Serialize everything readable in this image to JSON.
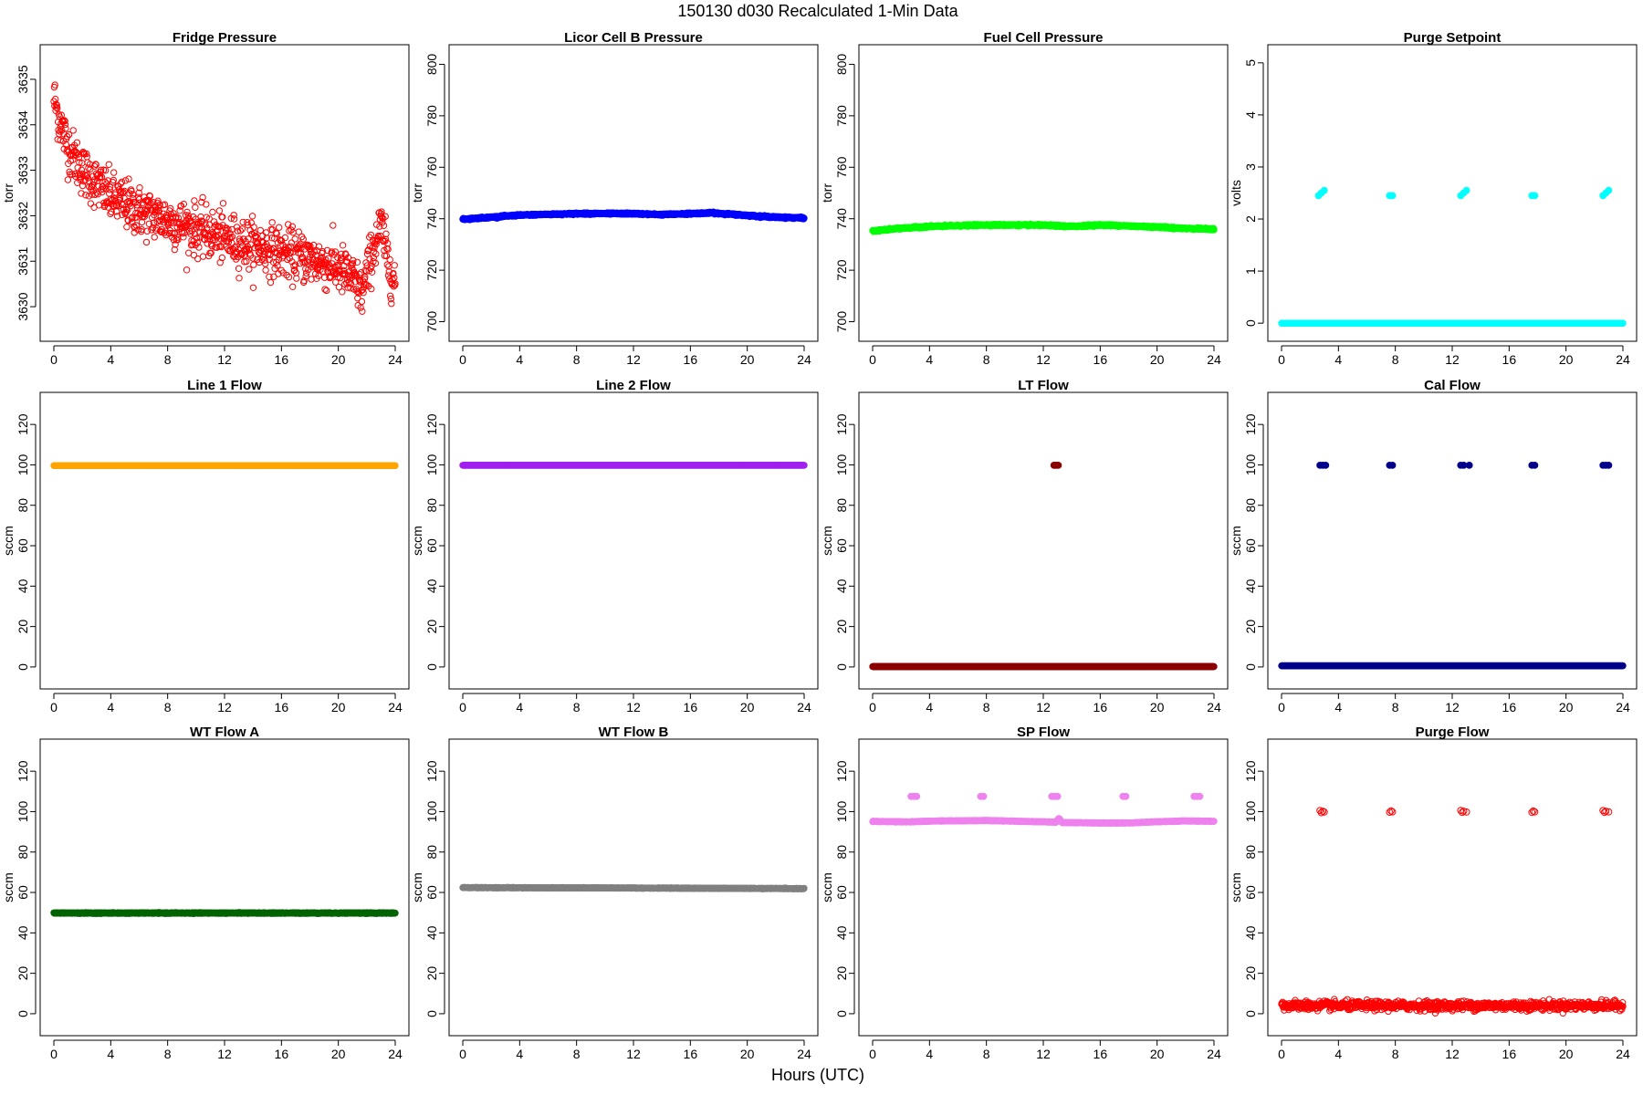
{
  "figure": {
    "title": "150130   d030   Recalculated 1-Min Data",
    "xlabel": "Hours (UTC)"
  },
  "chart_data": [
    {
      "type": "scatter",
      "title": "Fridge Pressure",
      "ylabel": "torr",
      "color": "#ff0000",
      "marker": "open",
      "xlim": [
        0,
        24
      ],
      "xticks": [
        0,
        4,
        8,
        12,
        16,
        20,
        24
      ],
      "ylim": [
        3629.5,
        3635.5
      ],
      "yticks": [
        3630,
        3631,
        3632,
        3633,
        3634,
        3635
      ],
      "series": [
        {
          "trend": [
            [
              0,
              3634.6
            ],
            [
              0.3,
              3634.2
            ],
            [
              1,
              3633.5
            ],
            [
              2,
              3633.0
            ],
            [
              3,
              3632.7
            ],
            [
              4,
              3632.4
            ],
            [
              6,
              3632.1
            ],
            [
              8,
              3631.9
            ],
            [
              10,
              3631.7
            ],
            [
              12,
              3631.5
            ],
            [
              14,
              3631.35
            ],
            [
              16,
              3631.2
            ],
            [
              18,
              3631.05
            ],
            [
              20,
              3630.85
            ],
            [
              21,
              3630.6
            ],
            [
              21.7,
              3630.3
            ],
            [
              22.3,
              3631.1
            ],
            [
              23,
              3631.8
            ],
            [
              23.5,
              3631.0
            ],
            [
              24,
              3630.5
            ]
          ],
          "spread": 0.55
        }
      ]
    },
    {
      "type": "scatter",
      "title": "Licor Cell B Pressure",
      "ylabel": "torr",
      "color": "#0000ff",
      "marker": "filled",
      "xlim": [
        0,
        24
      ],
      "xticks": [
        0,
        4,
        8,
        12,
        16,
        20,
        24
      ],
      "ylim": [
        697,
        803
      ],
      "yticks": [
        700,
        720,
        740,
        760,
        780,
        800
      ],
      "series": [
        {
          "trend": [
            [
              0,
              739.8
            ],
            [
              2,
              740.6
            ],
            [
              4,
              741.4
            ],
            [
              8,
              742.0
            ],
            [
              12,
              742.0
            ],
            [
              14,
              741.6
            ],
            [
              16,
              742.0
            ],
            [
              17.5,
              742.3
            ],
            [
              20,
              741.3
            ],
            [
              22,
              740.6
            ],
            [
              24,
              740.3
            ]
          ],
          "spread": 0.3
        }
      ]
    },
    {
      "type": "scatter",
      "title": "Fuel Cell Pressure",
      "ylabel": "torr",
      "color": "#00ff00",
      "marker": "filled",
      "xlim": [
        0,
        24
      ],
      "xticks": [
        0,
        4,
        8,
        12,
        16,
        20,
        24
      ],
      "ylim": [
        697,
        803
      ],
      "yticks": [
        700,
        720,
        740,
        760,
        780,
        800
      ],
      "series": [
        {
          "trend": [
            [
              0,
              735.2
            ],
            [
              2,
              736.3
            ],
            [
              4,
              737.0
            ],
            [
              8,
              737.6
            ],
            [
              12,
              737.5
            ],
            [
              14,
              737.0
            ],
            [
              16,
              737.6
            ],
            [
              20,
              736.8
            ],
            [
              22,
              736.2
            ],
            [
              24,
              736.0
            ]
          ],
          "spread": 0.3
        }
      ]
    },
    {
      "type": "scatter",
      "title": "Purge Setpoint",
      "ylabel": "volts",
      "color": "#00ffff",
      "marker": "filled",
      "xlim": [
        0,
        24
      ],
      "xticks": [
        0,
        4,
        8,
        12,
        16,
        20,
        24
      ],
      "ylim": [
        -0.12,
        5.12
      ],
      "yticks": [
        0,
        1,
        2,
        3,
        4,
        5
      ],
      "series": [
        {
          "trend": [
            [
              0,
              0
            ],
            [
              24,
              0
            ]
          ],
          "spread": 0.0
        },
        {
          "cluster": [
            [
              2.6,
              2.45
            ],
            [
              2.8,
              2.5
            ],
            [
              3.0,
              2.55
            ],
            [
              7.6,
              2.45
            ],
            [
              7.8,
              2.45
            ],
            [
              12.6,
              2.45
            ],
            [
              12.8,
              2.5
            ],
            [
              13.0,
              2.55
            ],
            [
              17.6,
              2.45
            ],
            [
              17.8,
              2.45
            ],
            [
              22.6,
              2.45
            ],
            [
              22.8,
              2.5
            ],
            [
              23.0,
              2.55
            ]
          ]
        }
      ]
    },
    {
      "type": "scatter",
      "title": "Line 1 Flow",
      "ylabel": "sccm",
      "color": "#ffa500",
      "marker": "filled",
      "xlim": [
        0,
        24
      ],
      "xticks": [
        0,
        4,
        8,
        12,
        16,
        20,
        24
      ],
      "ylim": [
        -5,
        130
      ],
      "yticks": [
        0,
        20,
        40,
        60,
        80,
        100,
        120
      ],
      "series": [
        {
          "trend": [
            [
              0,
              99.6
            ],
            [
              24,
              99.6
            ]
          ],
          "spread": 0.0
        }
      ]
    },
    {
      "type": "scatter",
      "title": "Line 2 Flow",
      "ylabel": "sccm",
      "color": "#a020f0",
      "marker": "filled",
      "xlim": [
        0,
        24
      ],
      "xticks": [
        0,
        4,
        8,
        12,
        16,
        20,
        24
      ],
      "ylim": [
        -5,
        130
      ],
      "yticks": [
        0,
        20,
        40,
        60,
        80,
        100,
        120
      ],
      "series": [
        {
          "trend": [
            [
              0,
              99.8
            ],
            [
              24,
              99.8
            ]
          ],
          "spread": 0.0
        }
      ]
    },
    {
      "type": "scatter",
      "title": "LT Flow",
      "ylabel": "sccm",
      "color": "#8b0000",
      "marker": "filled",
      "xlim": [
        0,
        24
      ],
      "xticks": [
        0,
        4,
        8,
        12,
        16,
        20,
        24
      ],
      "ylim": [
        -5,
        130
      ],
      "yticks": [
        0,
        20,
        40,
        60,
        80,
        100,
        120
      ],
      "series": [
        {
          "trend": [
            [
              0,
              0.2
            ],
            [
              24,
              0.2
            ]
          ],
          "spread": 0.0
        },
        {
          "cluster": [
            [
              12.75,
              99.8
            ],
            [
              12.85,
              99.8
            ],
            [
              12.95,
              99.8
            ],
            [
              13.05,
              99.8
            ]
          ]
        }
      ]
    },
    {
      "type": "scatter",
      "title": "Cal Flow",
      "ylabel": "sccm",
      "color": "#00008b",
      "marker": "filled",
      "xlim": [
        0,
        24
      ],
      "xticks": [
        0,
        4,
        8,
        12,
        16,
        20,
        24
      ],
      "ylim": [
        -5,
        130
      ],
      "yticks": [
        0,
        20,
        40,
        60,
        80,
        100,
        120
      ],
      "series": [
        {
          "trend": [
            [
              0,
              0.6
            ],
            [
              24,
              0.6
            ]
          ],
          "spread": 0.0
        },
        {
          "cluster": [
            [
              2.7,
              99.8
            ],
            [
              2.9,
              99.8
            ],
            [
              3.1,
              99.8
            ],
            [
              7.6,
              99.8
            ],
            [
              7.8,
              99.8
            ],
            [
              12.6,
              99.8
            ],
            [
              12.8,
              99.8
            ],
            [
              13.2,
              99.8
            ],
            [
              17.6,
              99.8
            ],
            [
              17.8,
              99.8
            ],
            [
              22.6,
              99.8
            ],
            [
              22.8,
              99.8
            ],
            [
              23.0,
              99.8
            ]
          ]
        }
      ]
    },
    {
      "type": "scatter",
      "title": "WT Flow A",
      "ylabel": "sccm",
      "color": "#006400",
      "marker": "filled",
      "xlim": [
        0,
        24
      ],
      "xticks": [
        0,
        4,
        8,
        12,
        16,
        20,
        24
      ],
      "ylim": [
        -5,
        130
      ],
      "yticks": [
        0,
        20,
        40,
        60,
        80,
        100,
        120
      ],
      "series": [
        {
          "trend": [
            [
              0,
              49.8
            ],
            [
              24,
              49.8
            ]
          ],
          "spread": 0.2
        }
      ]
    },
    {
      "type": "scatter",
      "title": "WT Flow B",
      "ylabel": "sccm",
      "color": "#808080",
      "marker": "filled",
      "xlim": [
        0,
        24
      ],
      "xticks": [
        0,
        4,
        8,
        12,
        16,
        20,
        24
      ],
      "ylim": [
        -5,
        130
      ],
      "yticks": [
        0,
        20,
        40,
        60,
        80,
        100,
        120
      ],
      "series": [
        {
          "trend": [
            [
              0,
              62.4
            ],
            [
              12,
              62.2
            ],
            [
              24,
              61.9
            ]
          ],
          "spread": 0.15
        }
      ]
    },
    {
      "type": "scatter",
      "title": "SP Flow",
      "ylabel": "sccm",
      "color": "#ee82ee",
      "marker": "filled",
      "xlim": [
        0,
        24
      ],
      "xticks": [
        0,
        4,
        8,
        12,
        16,
        20,
        24
      ],
      "ylim": [
        -5,
        130
      ],
      "yticks": [
        0,
        20,
        40,
        60,
        80,
        100,
        120
      ],
      "series": [
        {
          "trend": [
            [
              0,
              95.2
            ],
            [
              2.5,
              94.9
            ],
            [
              4,
              95.3
            ],
            [
              8,
              95.6
            ],
            [
              12.9,
              94.8
            ],
            [
              13.1,
              96.8
            ],
            [
              13.3,
              94.6
            ],
            [
              16,
              94.4
            ],
            [
              18,
              94.4
            ],
            [
              20,
              95.0
            ],
            [
              22,
              95.4
            ],
            [
              24,
              95.2
            ]
          ],
          "spread": 0.15
        },
        {
          "cluster": [
            [
              2.7,
              107.5
            ],
            [
              2.9,
              107.5
            ],
            [
              3.1,
              107.5
            ],
            [
              7.6,
              107.5
            ],
            [
              7.8,
              107.5
            ],
            [
              12.6,
              107.5
            ],
            [
              12.8,
              107.5
            ],
            [
              13.0,
              107.5
            ],
            [
              17.6,
              107.5
            ],
            [
              17.8,
              107.5
            ],
            [
              22.6,
              107.5
            ],
            [
              22.8,
              107.5
            ],
            [
              23.0,
              107.5
            ]
          ]
        }
      ]
    },
    {
      "type": "scatter",
      "title": "Purge Flow",
      "ylabel": "sccm",
      "color": "#ff0000",
      "marker": "open",
      "xlim": [
        0,
        24
      ],
      "xticks": [
        0,
        4,
        8,
        12,
        16,
        20,
        24
      ],
      "ylim": [
        -5,
        130
      ],
      "yticks": [
        0,
        20,
        40,
        60,
        80,
        100,
        120
      ],
      "series": [
        {
          "trend": [
            [
              0,
              4.0
            ],
            [
              24,
              4.0
            ]
          ],
          "spread": 2.2
        },
        {
          "cluster": [
            [
              2.7,
              100.5
            ],
            [
              2.8,
              99.5
            ],
            [
              2.9,
              100.2
            ],
            [
              3.0,
              99.8
            ],
            [
              7.6,
              99.7
            ],
            [
              7.7,
              100.4
            ],
            [
              7.8,
              99.9
            ],
            [
              12.6,
              100.6
            ],
            [
              12.7,
              99.6
            ],
            [
              12.8,
              100.2
            ],
            [
              13.0,
              99.8
            ],
            [
              17.6,
              99.6
            ],
            [
              17.7,
              100.3
            ],
            [
              17.8,
              99.9
            ],
            [
              22.6,
              100.5
            ],
            [
              22.7,
              99.6
            ],
            [
              22.8,
              100.2
            ],
            [
              23.0,
              99.9
            ]
          ]
        }
      ]
    }
  ]
}
